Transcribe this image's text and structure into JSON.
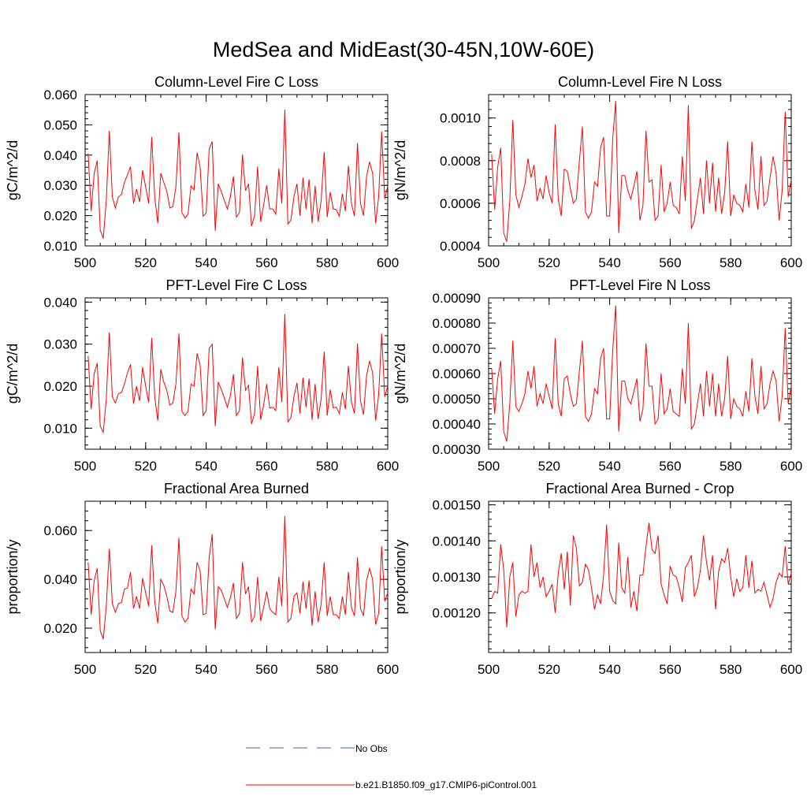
{
  "figure": {
    "title": "MedSea and MidEast(30-45N,10W-60E)"
  },
  "colors": {
    "model_line": "#ff0000",
    "obs_line": "#4f5bb5",
    "axis": "#000000"
  },
  "legend": {
    "placement": "bottom-center",
    "entries": [
      {
        "label": "No Obs",
        "style": "dashed",
        "color": "#4f5bb5"
      },
      {
        "label": "b.e21.B1850.f09_g17.CMIP6-piControl.001",
        "style": "solid",
        "color": "#ff0000"
      }
    ]
  },
  "chart_data": [
    {
      "type": "line",
      "title": "Column-Level Fire C Loss",
      "xlabel": "",
      "ylabel": "gC/m^2/d",
      "xlim": [
        500,
        600
      ],
      "ylim": [
        0.01,
        0.06
      ],
      "xticks": [
        500,
        520,
        540,
        560,
        580,
        600
      ],
      "xtick_labels": [
        "500",
        "520",
        "540",
        "560",
        "580",
        "600"
      ],
      "yticks": [
        0.01,
        0.02,
        0.03,
        0.04,
        0.05,
        0.06
      ],
      "ytick_labels": [
        "0.010",
        "0.020",
        "0.030",
        "0.040",
        "0.050",
        "0.060"
      ],
      "series": [
        {
          "x_start": 501,
          "x_step": 1,
          "values": [
            0.0405,
            0.0215,
            0.034,
            0.0382,
            0.0152,
            0.0125,
            0.025,
            0.048,
            0.0262,
            0.0225,
            0.0262,
            0.027,
            0.031,
            0.0335,
            0.0362,
            0.024,
            0.0288,
            0.0245,
            0.035,
            0.0295,
            0.024,
            0.046,
            0.0262,
            0.0175,
            0.034,
            0.031,
            0.028,
            0.0225,
            0.023,
            0.0295,
            0.0475,
            0.021,
            0.0192,
            0.0205,
            0.0298,
            0.0285,
            0.0408,
            0.036,
            0.0198,
            0.0208,
            0.042,
            0.0445,
            0.015,
            0.0305,
            0.028,
            0.025,
            0.0222,
            0.0262,
            0.033,
            0.0195,
            0.021,
            0.0402,
            0.0282,
            0.0305,
            0.0165,
            0.02,
            0.0362,
            0.018,
            0.0235,
            0.03,
            0.0222,
            0.0222,
            0.0205,
            0.0355,
            0.024,
            0.055,
            0.0172,
            0.0185,
            0.0262,
            0.0305,
            0.02,
            0.0325,
            0.0222,
            0.032,
            0.0175,
            0.0298,
            0.018,
            0.025,
            0.041,
            0.0195,
            0.0278,
            0.0222,
            0.022,
            0.0198,
            0.0272,
            0.0215,
            0.0365,
            0.024,
            0.0198,
            0.044,
            0.024,
            0.02,
            0.033,
            0.0378,
            0.034,
            0.0175,
            0.0262,
            0.0478,
            0.0255,
            0.0298
          ]
        }
      ]
    },
    {
      "type": "line",
      "title": "Column-Level Fire N Loss",
      "xlabel": "",
      "ylabel": "gN/m^2/d",
      "xlim": [
        500,
        600
      ],
      "ylim": [
        0.0004,
        0.00111
      ],
      "xticks": [
        500,
        520,
        540,
        560,
        580,
        600
      ],
      "xtick_labels": [
        "500",
        "520",
        "540",
        "560",
        "580",
        "600"
      ],
      "yticks": [
        0.0004,
        0.0006,
        0.0008,
        0.001
      ],
      "ytick_labels": [
        "0.0004",
        "0.0006",
        "0.0008",
        "0.0010"
      ],
      "series": [
        {
          "x_start": 501,
          "x_step": 1,
          "values": [
            0.00083,
            0.00057,
            0.00077,
            0.00086,
            0.00046,
            0.00042,
            0.00061,
            0.00099,
            0.00064,
            0.00058,
            0.00063,
            0.00069,
            0.00081,
            0.00072,
            0.00078,
            0.00061,
            0.00067,
            0.00062,
            0.00073,
            0.00065,
            0.0006,
            0.00097,
            0.00062,
            0.00054,
            0.00076,
            0.00075,
            0.00067,
            0.0006,
            0.00062,
            0.0008,
            0.00096,
            0.00056,
            0.00053,
            0.00056,
            0.0007,
            0.00068,
            0.00086,
            0.00091,
            0.00054,
            0.00054,
            0.0009,
            0.00108,
            0.00046,
            0.00073,
            0.00073,
            0.00066,
            0.00062,
            0.00068,
            0.00075,
            0.00052,
            0.00059,
            0.00094,
            0.0007,
            0.00071,
            0.00052,
            0.00054,
            0.00078,
            0.00056,
            0.0006,
            0.0007,
            0.00059,
            0.00058,
            0.00055,
            0.00082,
            0.00061,
            0.00106,
            0.00048,
            0.00052,
            0.00062,
            0.00072,
            0.00055,
            0.0008,
            0.0006,
            0.00079,
            0.00056,
            0.00072,
            0.00055,
            0.00065,
            0.00089,
            0.00054,
            0.00064,
            0.0006,
            0.00059,
            0.00056,
            0.00069,
            0.00058,
            0.00089,
            0.00066,
            0.00057,
            0.00082,
            0.00059,
            0.00061,
            0.00072,
            0.00082,
            0.00074,
            0.00052,
            0.00066,
            0.00103,
            0.00063,
            0.00071
          ]
        }
      ]
    },
    {
      "type": "line",
      "title": "PFT-Level Fire C Loss",
      "xlabel": "",
      "ylabel": "gC/m^2/d",
      "xlim": [
        500,
        600
      ],
      "ylim": [
        0.005,
        0.041
      ],
      "xticks": [
        500,
        520,
        540,
        560,
        580,
        600
      ],
      "xtick_labels": [
        "500",
        "520",
        "540",
        "560",
        "580",
        "600"
      ],
      "yticks": [
        0.01,
        0.02,
        0.03,
        0.04
      ],
      "ytick_labels": [
        "0.010",
        "0.020",
        "0.030",
        "0.040"
      ],
      "series": [
        {
          "x_start": 501,
          "x_step": 1,
          "values": [
            0.0272,
            0.0145,
            0.023,
            0.0255,
            0.0105,
            0.009,
            0.017,
            0.0328,
            0.0175,
            0.016,
            0.0182,
            0.0185,
            0.0205,
            0.0232,
            0.0252,
            0.0158,
            0.02,
            0.0165,
            0.0245,
            0.02,
            0.0162,
            0.0315,
            0.0175,
            0.0118,
            0.024,
            0.021,
            0.019,
            0.0155,
            0.016,
            0.0205,
            0.0325,
            0.014,
            0.013,
            0.014,
            0.0205,
            0.02,
            0.0278,
            0.025,
            0.013,
            0.0142,
            0.029,
            0.03,
            0.0105,
            0.021,
            0.0192,
            0.0172,
            0.015,
            0.0178,
            0.0228,
            0.013,
            0.0142,
            0.0268,
            0.019,
            0.0202,
            0.011,
            0.0135,
            0.0248,
            0.012,
            0.0155,
            0.0205,
            0.0148,
            0.015,
            0.0142,
            0.0245,
            0.0162,
            0.0372,
            0.0115,
            0.0125,
            0.0175,
            0.0208,
            0.0135,
            0.022,
            0.015,
            0.0218,
            0.012,
            0.0205,
            0.0122,
            0.017,
            0.0282,
            0.013,
            0.0192,
            0.0148,
            0.015,
            0.0135,
            0.0185,
            0.0145,
            0.0248,
            0.0162,
            0.0135,
            0.0302,
            0.0165,
            0.0132,
            0.0225,
            0.026,
            0.0232,
            0.0118,
            0.018,
            0.0325,
            0.0175,
            0.02
          ]
        }
      ]
    },
    {
      "type": "line",
      "title": "PFT-Level Fire N Loss",
      "xlabel": "",
      "ylabel": "gN/m^2/d",
      "xlim": [
        500,
        600
      ],
      "ylim": [
        0.0003,
        0.0009
      ],
      "xticks": [
        500,
        520,
        540,
        560,
        580,
        600
      ],
      "xtick_labels": [
        "500",
        "520",
        "540",
        "560",
        "580",
        "600"
      ],
      "yticks": [
        0.0003,
        0.0004,
        0.0005,
        0.0006,
        0.0007,
        0.0008,
        0.0009
      ],
      "ytick_labels": [
        "0.00030",
        "0.00040",
        "0.00050",
        "0.00060",
        "0.00070",
        "0.00080",
        "0.00090"
      ],
      "series": [
        {
          "x_start": 501,
          "x_step": 1,
          "values": [
            0.00062,
            0.00044,
            0.00058,
            0.00065,
            0.00037,
            0.00033,
            0.00048,
            0.00073,
            0.00047,
            0.00045,
            0.00048,
            0.00052,
            0.00061,
            0.00054,
            0.00063,
            0.00047,
            0.00052,
            0.00048,
            0.00056,
            0.00051,
            0.00046,
            0.00074,
            0.00048,
            0.00043,
            0.00058,
            0.00059,
            0.00052,
            0.00047,
            0.00048,
            0.00061,
            0.00073,
            0.00043,
            0.00041,
            0.00044,
            0.00054,
            0.00052,
            0.00066,
            0.0007,
            0.00042,
            0.00042,
            0.00069,
            0.00087,
            0.00037,
            0.00057,
            0.00057,
            0.0005,
            0.00048,
            0.00053,
            0.00058,
            0.00041,
            0.00046,
            0.00072,
            0.00055,
            0.00055,
            0.0004,
            0.00042,
            0.0006,
            0.00044,
            0.00046,
            0.00054,
            0.00045,
            0.00044,
            0.00043,
            0.00062,
            0.00048,
            0.0008,
            0.00038,
            0.0004,
            0.00048,
            0.00056,
            0.00043,
            0.00061,
            0.00047,
            0.0006,
            0.00043,
            0.00056,
            0.00043,
            0.0005,
            0.00067,
            0.00042,
            0.0005,
            0.00047,
            0.00046,
            0.00043,
            0.00053,
            0.00045,
            0.00066,
            0.00051,
            0.00044,
            0.00063,
            0.00046,
            0.00048,
            0.00056,
            0.00061,
            0.00057,
            0.00041,
            0.00051,
            0.00078,
            0.00048,
            0.00055
          ]
        }
      ]
    },
    {
      "type": "line",
      "title": "Fractional Area Burned",
      "xlabel": "",
      "ylabel": "proportion/y",
      "xlim": [
        500,
        600
      ],
      "ylim": [
        0.01,
        0.072
      ],
      "xticks": [
        500,
        520,
        540,
        560,
        580,
        600
      ],
      "xtick_labels": [
        "500",
        "520",
        "540",
        "560",
        "580",
        "600"
      ],
      "yticks": [
        0.02,
        0.04,
        0.06
      ],
      "ytick_labels": [
        "0.020",
        "0.040",
        "0.060"
      ],
      "series": [
        {
          "x_start": 501,
          "x_step": 1,
          "values": [
            0.047,
            0.0255,
            0.0395,
            0.0445,
            0.019,
            0.0155,
            0.029,
            0.0525,
            0.03,
            0.0265,
            0.03,
            0.0305,
            0.036,
            0.0365,
            0.043,
            0.028,
            0.033,
            0.028,
            0.0405,
            0.0345,
            0.029,
            0.054,
            0.031,
            0.022,
            0.04,
            0.0375,
            0.033,
            0.027,
            0.0265,
            0.035,
            0.057,
            0.025,
            0.0225,
            0.024,
            0.036,
            0.034,
            0.047,
            0.0435,
            0.0255,
            0.026,
            0.049,
            0.0585,
            0.0195,
            0.037,
            0.0355,
            0.032,
            0.0285,
            0.0325,
            0.0385,
            0.024,
            0.026,
            0.047,
            0.034,
            0.037,
            0.0225,
            0.025,
            0.041,
            0.023,
            0.0285,
            0.035,
            0.028,
            0.0265,
            0.0255,
            0.041,
            0.029,
            0.066,
            0.0225,
            0.024,
            0.033,
            0.0345,
            0.026,
            0.039,
            0.028,
            0.0395,
            0.021,
            0.035,
            0.0225,
            0.03,
            0.047,
            0.025,
            0.033,
            0.0255,
            0.0255,
            0.024,
            0.033,
            0.0255,
            0.043,
            0.0285,
            0.025,
            0.049,
            0.028,
            0.025,
            0.0395,
            0.0445,
            0.04,
            0.0215,
            0.026,
            0.0535,
            0.031,
            0.0345
          ]
        }
      ]
    },
    {
      "type": "line",
      "title": "Fractional Area Burned - Crop",
      "xlabel": "",
      "ylabel": "proportion/y",
      "xlim": [
        500,
        600
      ],
      "ylim": [
        0.00109,
        0.00151
      ],
      "xticks": [
        500,
        520,
        540,
        560,
        580,
        600
      ],
      "xtick_labels": [
        "500",
        "520",
        "540",
        "560",
        "580",
        "600"
      ],
      "yticks": [
        0.0012,
        0.0013,
        0.0014,
        0.0015
      ],
      "ytick_labels": [
        "0.00120",
        "0.00130",
        "0.00140",
        "0.00150"
      ],
      "series": [
        {
          "x_start": 501,
          "x_step": 1,
          "values": [
            0.00124,
            0.00126,
            0.001255,
            0.00139,
            0.00132,
            0.00116,
            0.0013,
            0.00134,
            0.00119,
            0.00125,
            0.00126,
            0.001255,
            0.00126,
            0.00139,
            0.0013,
            0.00134,
            0.00127,
            0.0013,
            0.001245,
            0.00126,
            0.00128,
            0.0012,
            0.00131,
            0.001365,
            0.001265,
            0.00137,
            0.00122,
            0.001415,
            0.00138,
            0.001275,
            0.001285,
            0.001335,
            0.00132,
            0.00127,
            0.00121,
            0.00125,
            0.001225,
            0.001305,
            0.001445,
            0.00126,
            0.001235,
            0.001225,
            0.001395,
            0.00127,
            0.001255,
            0.001355,
            0.001215,
            0.00126,
            0.001205,
            0.001305,
            0.001305,
            0.001385,
            0.00145,
            0.001375,
            0.001365,
            0.001415,
            0.00128,
            0.00125,
            0.001225,
            0.00133,
            0.001305,
            0.0013,
            0.00127,
            0.00123,
            0.001325,
            0.00134,
            0.00136,
            0.001245,
            0.00127,
            0.00132,
            0.001415,
            0.00134,
            0.00129,
            0.00136,
            0.00121,
            0.001315,
            0.00135,
            0.00134,
            0.00138,
            0.0013,
            0.001245,
            0.001295,
            0.00126,
            0.00127,
            0.00136,
            0.00127,
            0.001345,
            0.001255,
            0.001265,
            0.00126,
            0.001285,
            0.00125,
            0.001215,
            0.00124,
            0.001285,
            0.00131,
            0.0013,
            0.001385,
            0.00128,
            0.00131
          ]
        }
      ]
    }
  ]
}
